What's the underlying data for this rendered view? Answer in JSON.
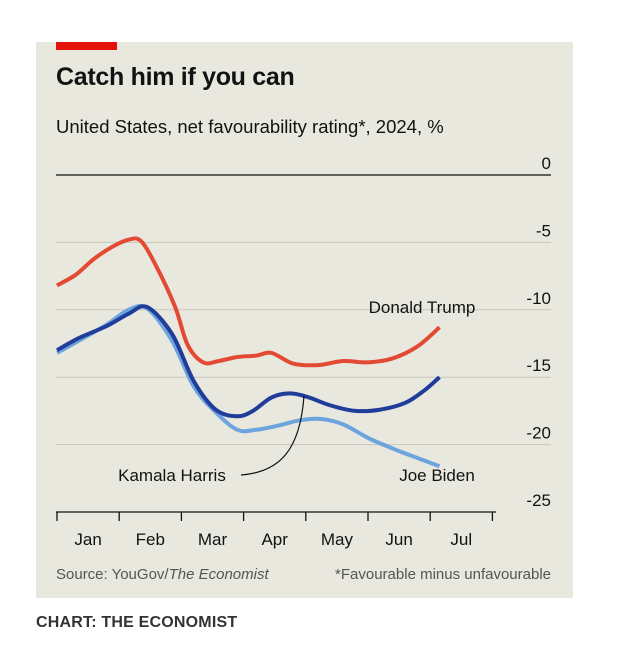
{
  "colors": {
    "trump": "#e34a33",
    "harris": "#1f3d99",
    "biden": "#6ea4de",
    "accent": "#e3120b",
    "background": "#e9e8df"
  },
  "chart_data": {
    "type": "line",
    "title": "Catch him if you can",
    "subtitle": "United States, net favourability rating*, 2024, %",
    "x_unit": "months since Jan 1, 2024",
    "xlim": [
      0,
      7
    ],
    "ylim": [
      -25,
      0
    ],
    "yticks": [
      0,
      -5,
      -10,
      -15,
      -20,
      -25
    ],
    "ytick_labels": [
      "0",
      "-5",
      "-10",
      "-15",
      "-20",
      "-25"
    ],
    "month_labels": [
      "Jan",
      "Feb",
      "Mar",
      "Apr",
      "May",
      "Jun",
      "Jul"
    ],
    "series": [
      {
        "name": "Donald Trump",
        "key": "trump",
        "x": [
          0,
          0.3,
          0.6,
          0.9,
          1.15,
          1.35,
          1.6,
          1.9,
          2.1,
          2.35,
          2.6,
          2.9,
          3.2,
          3.45,
          3.8,
          4.2,
          4.6,
          5.0,
          5.4,
          5.8,
          6.15
        ],
        "y": [
          -8.2,
          -7.4,
          -6.2,
          -5.3,
          -4.8,
          -4.9,
          -6.8,
          -9.8,
          -12.6,
          -13.9,
          -13.8,
          -13.5,
          -13.4,
          -13.2,
          -14.0,
          -14.1,
          -13.8,
          -13.9,
          -13.6,
          -12.7,
          -11.3
        ]
      },
      {
        "name": "Kamala Harris",
        "key": "harris",
        "x": [
          0,
          0.35,
          0.8,
          1.15,
          1.45,
          1.85,
          2.2,
          2.55,
          2.9,
          3.15,
          3.45,
          3.75,
          4.05,
          4.4,
          4.8,
          5.2,
          5.6,
          5.9,
          6.15
        ],
        "y": [
          -13.0,
          -12.1,
          -11.2,
          -10.3,
          -9.8,
          -11.8,
          -15.3,
          -17.4,
          -17.9,
          -17.5,
          -16.5,
          -16.2,
          -16.5,
          -17.1,
          -17.5,
          -17.4,
          -16.9,
          -16.0,
          -15.0
        ]
      },
      {
        "name": "Joe Biden",
        "key": "biden",
        "x": [
          0,
          0.35,
          0.8,
          1.15,
          1.45,
          1.85,
          2.2,
          2.55,
          2.9,
          3.2,
          3.55,
          3.9,
          4.25,
          4.6,
          5.0,
          5.4,
          5.8,
          6.15
        ],
        "y": [
          -13.2,
          -12.3,
          -11.1,
          -10.0,
          -9.9,
          -12.3,
          -15.7,
          -17.6,
          -18.9,
          -18.9,
          -18.6,
          -18.2,
          -18.1,
          -18.5,
          -19.5,
          -20.3,
          -21.0,
          -21.6
        ]
      }
    ],
    "labels": {
      "trump": "Donald Trump",
      "harris": "Kamala Harris",
      "biden": "Joe Biden"
    },
    "source": "Source: YouGov/",
    "source_italic": "The Economist",
    "footnote": "*Favourable minus unfavourable"
  },
  "credit": "CHART: THE ECONOMIST"
}
